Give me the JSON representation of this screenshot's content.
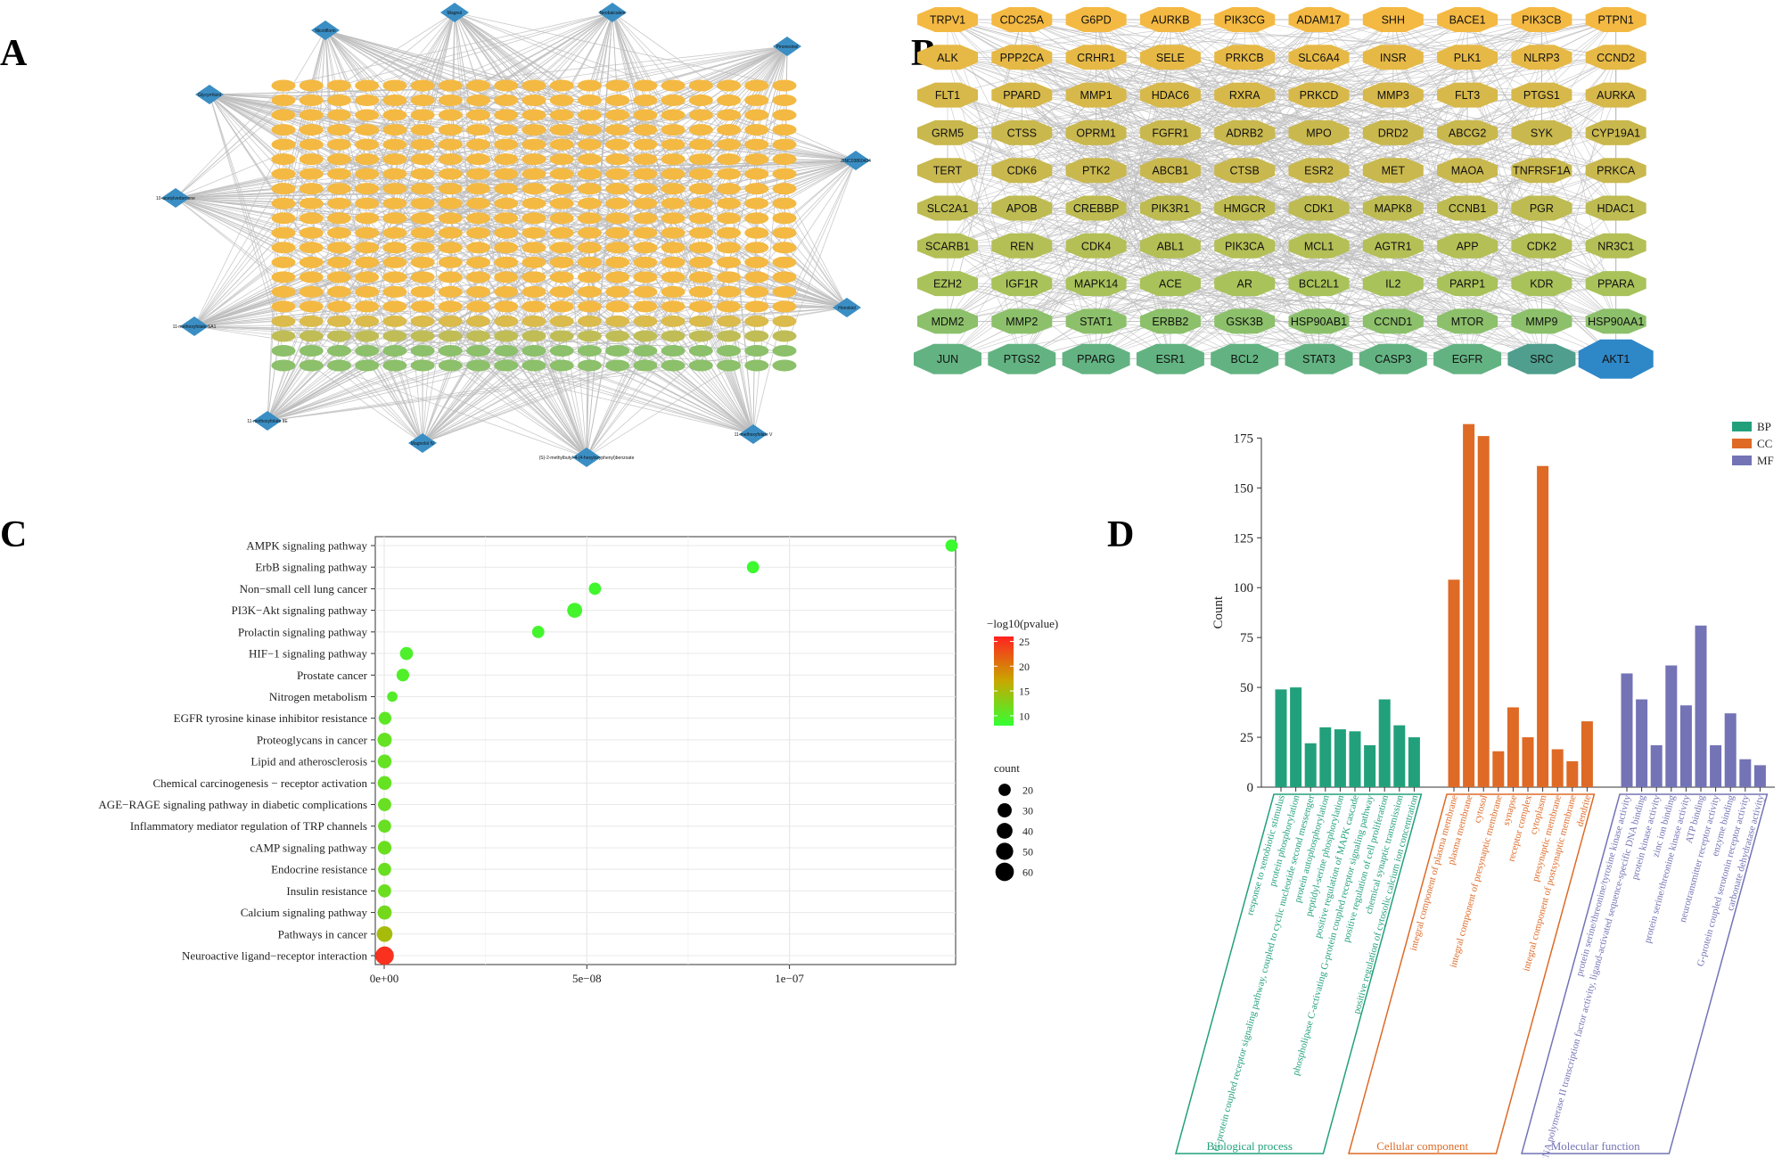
{
  "panel_letters": {
    "a": "A",
    "b": "B",
    "c": "C",
    "d": "D"
  },
  "colors": {
    "edge": "#bdbdbd",
    "compound_diamond": "#3a8ec4",
    "target_high": "#f4b942",
    "target_mid": "#c9b84e",
    "target_low": "#8cc06a",
    "hub_teal": "#4f9e8e",
    "hub_blue": "#2e87c7",
    "bp": "#22a07c",
    "cc": "#de6a26",
    "mf": "#7373b6"
  },
  "chart_data": [
    {
      "id": "A",
      "type": "network",
      "description_label": "compound-target network",
      "compounds": [
        "Nicotiflorin",
        "Magnol",
        "Neobaicalein",
        "Pinoresinol",
        "Glycyrrhizol",
        "10-acetylverbenone",
        "ZINC03860434",
        "Honokiol",
        "11-methoxyfolate SA1",
        "11-methoxyfolate IIE",
        "Magnolol IV",
        "(S)-2-methylbutyl-4-(4-hexyloxyphenyl)benzoate",
        "11-methoxyfolate V"
      ],
      "target_grid": {
        "rows": 20,
        "cols": 19
      }
    },
    {
      "id": "B",
      "type": "network-grid",
      "rows": [
        [
          "TRPV1",
          "CDC25A",
          "G6PD",
          "AURKB",
          "PIK3CG",
          "ADAM17",
          "SHH",
          "BACE1",
          "PIK3CB",
          "PTPN1"
        ],
        [
          "ALK",
          "PPP2CA",
          "CRHR1",
          "SELE",
          "PRKCB",
          "SLC6A4",
          "INSR",
          "PLK1",
          "NLRP3",
          "CCND2"
        ],
        [
          "FLT1",
          "PPARD",
          "MMP1",
          "HDAC6",
          "RXRA",
          "PRKCD",
          "MMP3",
          "FLT3",
          "PTGS1",
          "AURKA"
        ],
        [
          "GRM5",
          "CTSS",
          "OPRM1",
          "FGFR1",
          "ADRB2",
          "MPO",
          "DRD2",
          "ABCG2",
          "SYK",
          "CYP19A1"
        ],
        [
          "TERT",
          "CDK6",
          "PTK2",
          "ABCB1",
          "CTSB",
          "ESR2",
          "MET",
          "MAOA",
          "TNFRSF1A",
          "PRKCA"
        ],
        [
          "SLC2A1",
          "APOB",
          "CREBBP",
          "PIK3R1",
          "HMGCR",
          "CDK1",
          "MAPK8",
          "CCNB1",
          "PGR",
          "HDAC1"
        ],
        [
          "SCARB1",
          "REN",
          "CDK4",
          "ABL1",
          "PIK3CA",
          "MCL1",
          "AGTR1",
          "APP",
          "CDK2",
          "NR3C1"
        ],
        [
          "EZH2",
          "IGF1R",
          "MAPK14",
          "ACE",
          "AR",
          "BCL2L1",
          "IL2",
          "PARP1",
          "KDR",
          "PPARA"
        ],
        [
          "MDM2",
          "MMP2",
          "STAT1",
          "ERBB2",
          "GSK3B",
          "HSP90AB1",
          "CCND1",
          "MTOR",
          "MMP9",
          "HSP90AA1"
        ],
        [
          "JUN",
          "PTGS2",
          "PPARG",
          "ESR1",
          "BCL2",
          "STAT3",
          "CASP3",
          "EGFR",
          "SRC",
          "AKT1"
        ]
      ]
    },
    {
      "id": "C",
      "type": "scatter",
      "categories": [
        "AMPK signaling pathway",
        "ErbB signaling pathway",
        "Non−small cell lung cancer",
        "PI3K−Akt signaling pathway",
        "Prolactin signaling pathway",
        "HIF−1 signaling pathway",
        "Prostate cancer",
        "Nitrogen metabolism",
        "EGFR tyrosine kinase inhibitor resistance",
        "Proteoglycans in cancer",
        "Lipid and atherosclerosis",
        "Chemical carcinogenesis − receptor activation",
        "AGE−RAGE signaling pathway in diabetic complications",
        "Inflammatory mediator regulation of TRP channels",
        "cAMP signaling pathway",
        "Endocrine resistance",
        "Insulin resistance",
        "Calcium signaling pathway",
        "Pathways in cancer",
        "Neuroactive ligand−receptor interaction"
      ],
      "x": [
        1.4e-07,
        9.1e-08,
        5.2e-08,
        4.7e-08,
        3.8e-08,
        5.5e-09,
        4.6e-09,
        2e-09,
        2e-10,
        1e-10,
        1e-10,
        1e-10,
        1e-10,
        1e-10,
        1e-10,
        1e-10,
        1e-10,
        1e-10,
        1e-10,
        1e-10
      ],
      "count": [
        20,
        20,
        20,
        35,
        20,
        24,
        22,
        12,
        22,
        30,
        28,
        28,
        25,
        24,
        27,
        24,
        24,
        30,
        40,
        60
      ],
      "neglog10p": [
        8.5,
        8.6,
        8.8,
        9.0,
        9.0,
        9.6,
        9.7,
        10.0,
        10.5,
        11.0,
        11.0,
        11.0,
        11.2,
        11.2,
        11.3,
        11.3,
        11.4,
        12.0,
        15.0,
        25.0
      ],
      "xticks": [
        "0e+00",
        "5e−08",
        "1e−07"
      ],
      "xtick_values": [
        0,
        5e-08,
        1e-07
      ],
      "xlim": [
        -2.2e-09,
        1.41e-07
      ],
      "color_legend_title": "−log10(pvalue)",
      "color_legend_ticks": [
        10,
        15,
        20,
        25
      ],
      "color_range": [
        8,
        26
      ],
      "size_legend_title": "count",
      "size_legend_ticks": [
        20,
        30,
        40,
        50,
        60
      ]
    },
    {
      "id": "D",
      "type": "bar",
      "ylabel": "Count",
      "yticks": [
        0,
        25,
        50,
        75,
        100,
        125,
        150,
        175
      ],
      "ylim": [
        0,
        185
      ],
      "legend": [
        {
          "key": "BP",
          "label": "BP"
        },
        {
          "key": "CC",
          "label": "CC"
        },
        {
          "key": "MF",
          "label": "MF"
        }
      ],
      "groups": [
        {
          "key": "BP",
          "name": "Biological process",
          "categories": [
            "response to xenobiotic stimulus",
            "protein phosphorylation",
            "G-protein coupled receptor signaling pathway, coupled to cyclic nucleotide second messenger",
            "protein autophosphorylation",
            "peptidyl-serine phosphorylation",
            "positive regulation of MAPK cascade",
            "phospholipase C-activating G-protein coupled receptor signaling pathway",
            "positive regulation of cell proliferation",
            "chemical synaptic transmission",
            "positive regulation of cytosolic calcium ion concentration"
          ],
          "values": [
            49,
            50,
            22,
            30,
            29,
            28,
            21,
            44,
            31,
            25
          ]
        },
        {
          "key": "CC",
          "name": "Cellular component",
          "categories": [
            "integral component of plasma membrane",
            "plasma membrane",
            "cytosol",
            "integral component of presynaptic membrane",
            "synapse",
            "receptor complex",
            "cytoplasm",
            "presynaptic membrane",
            "integral component of postsynaptic membrane",
            "dendrite"
          ],
          "values": [
            104,
            182,
            176,
            18,
            40,
            25,
            161,
            19,
            13,
            33
          ]
        },
        {
          "key": "MF",
          "name": "Molecular function",
          "categories": [
            "protein serine/threonine/tyrosine kinase activity",
            "RNA polymerase II transcription factor activity, ligand-activated sequence-specific DNA binding",
            "protein kinase activity",
            "zinc ion binding",
            "protein serine/threonine kinase activity",
            "ATP binding",
            "neurotransmitter receptor activity",
            "enzyme binding",
            "G-protein coupled serotonin receptor activity",
            "carbonate dehydratase activity"
          ],
          "values": [
            57,
            44,
            21,
            61,
            41,
            81,
            21,
            37,
            14,
            11
          ]
        }
      ]
    }
  ]
}
